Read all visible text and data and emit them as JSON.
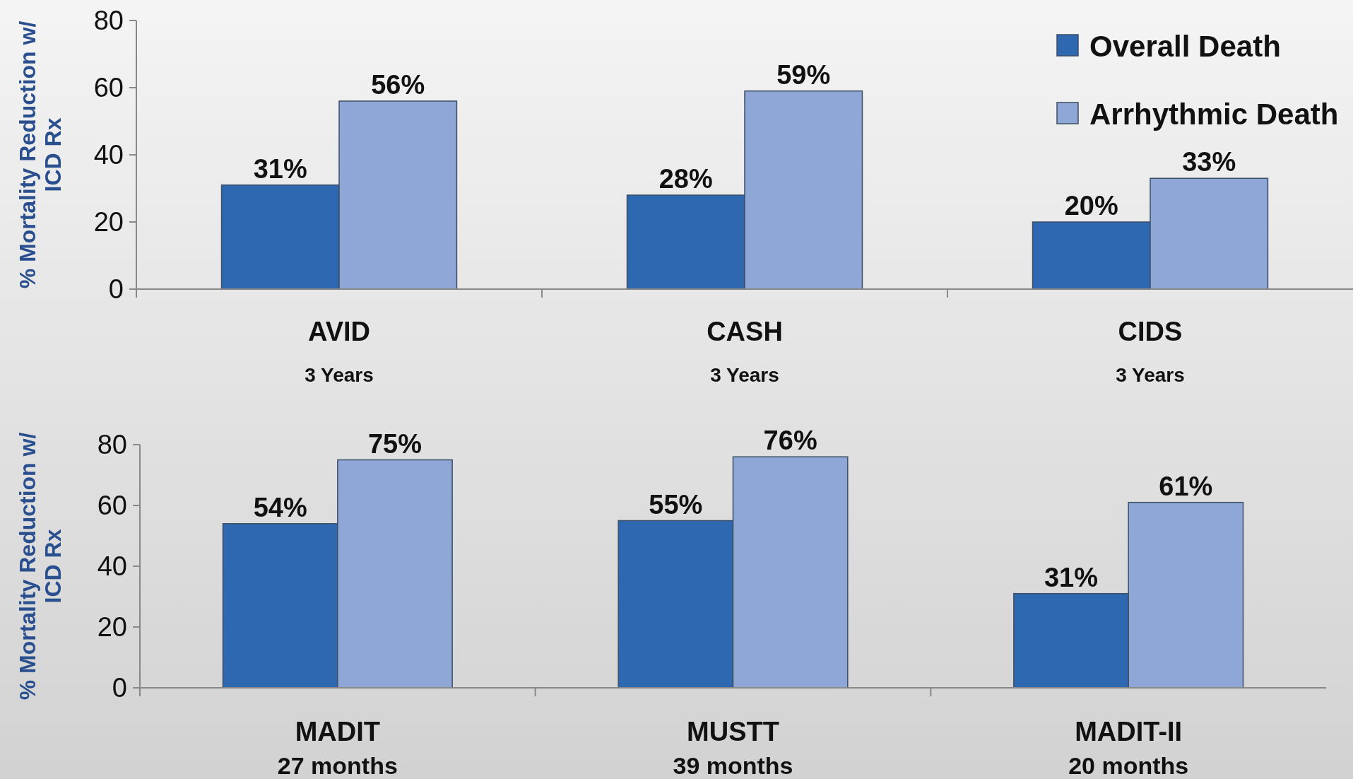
{
  "chart_data": [
    {
      "type": "bar",
      "ylabel": "% Mortality Reduction w/\nICD Rx",
      "categories": [
        "AVID\n3 Years",
        "CASH\n3 Years",
        "CIDS\n3 Years"
      ],
      "ylim": [
        0,
        80
      ],
      "yticks": [
        0,
        20,
        40,
        60,
        80
      ],
      "legend": "top right",
      "series": [
        {
          "name": "Overall Death",
          "color": "#2e68b0",
          "values": [
            31,
            28,
            20
          ],
          "value_labels": [
            "31%",
            "28%",
            "20%"
          ]
        },
        {
          "name": "Arrhythmic Death",
          "color": "#8ea7d6",
          "values": [
            56,
            59,
            33
          ],
          "value_labels": [
            "56%",
            "59%",
            "33%"
          ]
        }
      ]
    },
    {
      "type": "bar",
      "ylabel": "% Mortality Reduction w/\nICD Rx",
      "categories": [
        "MADIT\n27 months",
        "MUSTT\n39 months",
        "MADIT-II\n20 months"
      ],
      "ylim": [
        0,
        80
      ],
      "yticks": [
        0,
        20,
        40,
        60,
        80
      ],
      "series": [
        {
          "color": "#2e68b0",
          "values": [
            54,
            55,
            31
          ],
          "value_labels": [
            "54%",
            "55%",
            "31%"
          ]
        },
        {
          "color": "#8ea7d6",
          "values": [
            75,
            76,
            61
          ],
          "value_labels": [
            "75%",
            "76%",
            "61%"
          ]
        }
      ]
    }
  ]
}
